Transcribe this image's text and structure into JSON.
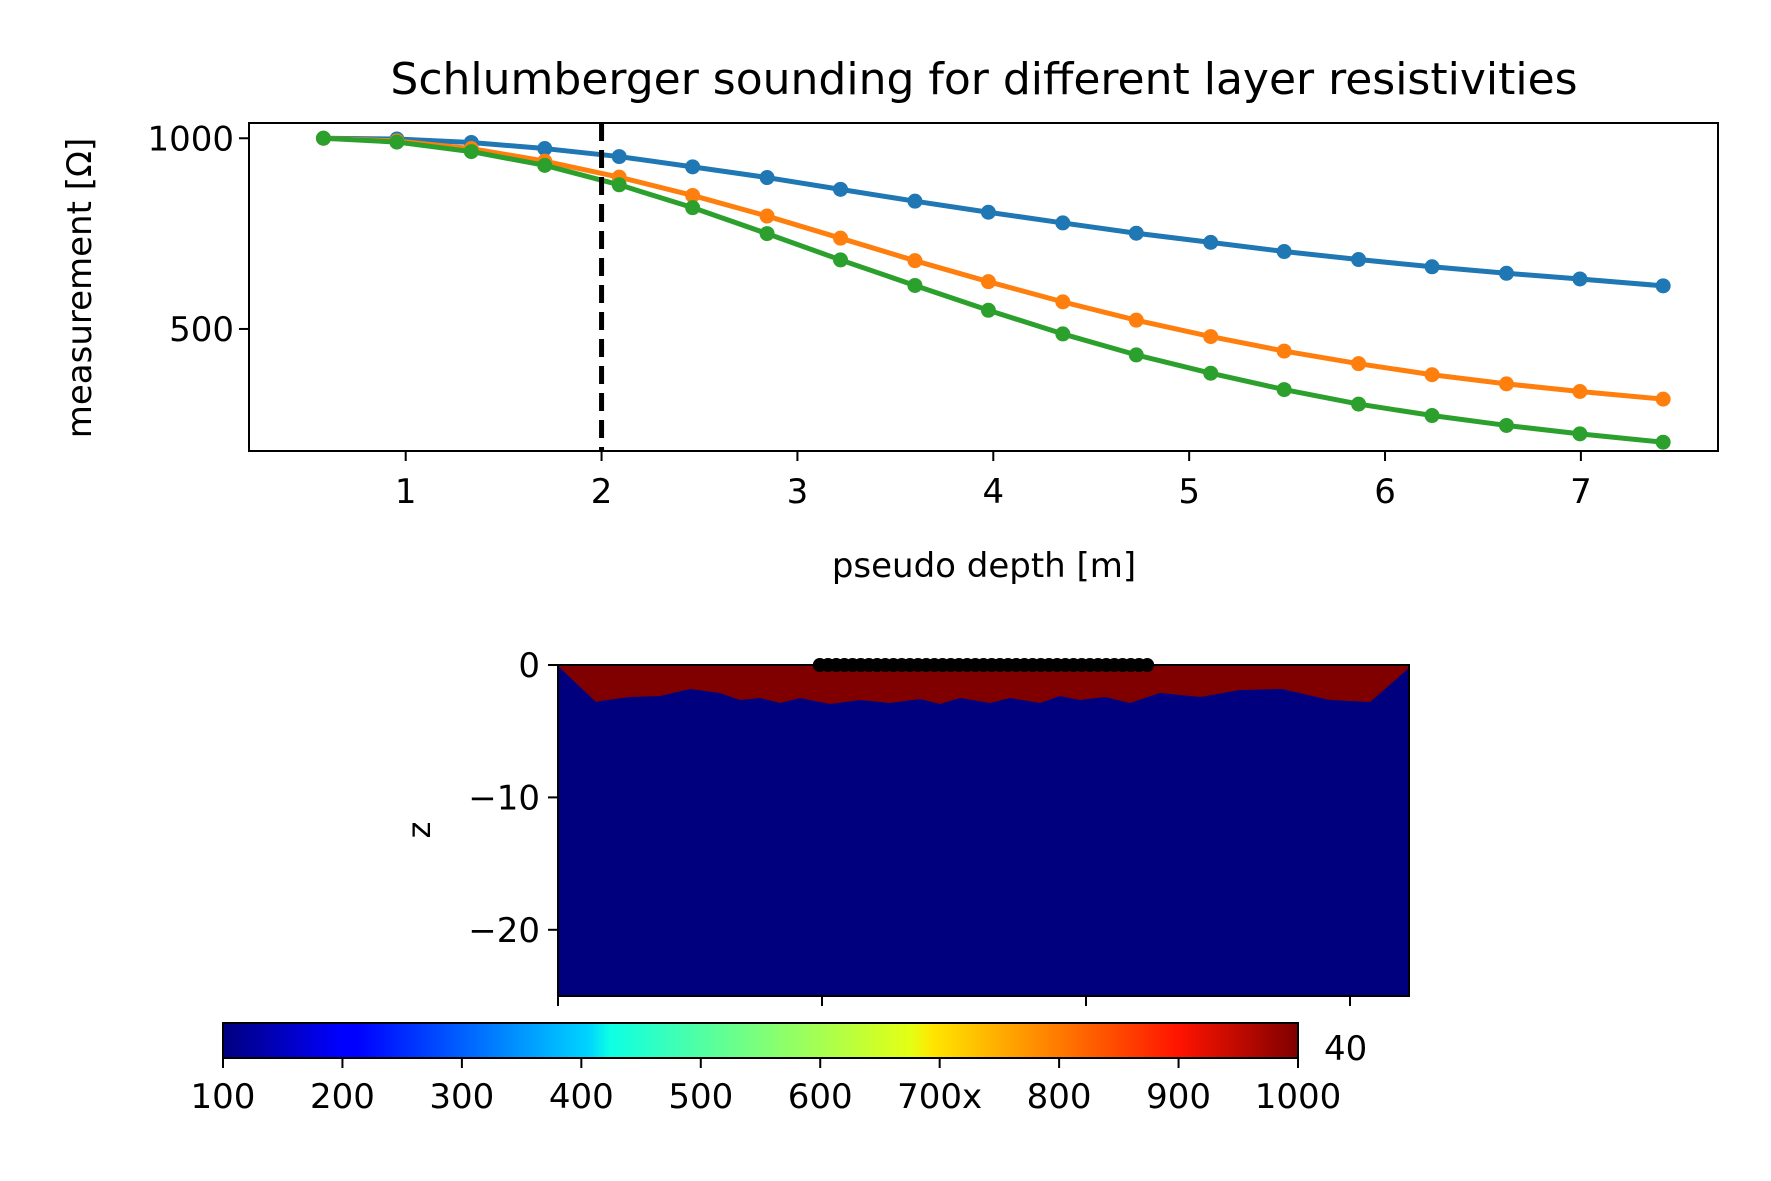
{
  "chart_data": [
    {
      "type": "line",
      "title": "Schlumberger sounding for different layer resistivities",
      "xlabel": "pseudo depth [m]",
      "ylabel": "measurement [Ω]",
      "xlim": [
        0.2,
        7.7
      ],
      "ylim": [
        180,
        1040
      ],
      "xticks": [
        "1",
        "2",
        "3",
        "4",
        "5",
        "6",
        "7"
      ],
      "yticks": [
        "500",
        "1000"
      ],
      "x": [
        0.58,
        0.955,
        1.335,
        1.71,
        2.09,
        2.465,
        2.845,
        3.22,
        3.6,
        3.975,
        4.355,
        4.73,
        5.11,
        5.485,
        5.865,
        6.24,
        6.62,
        6.995,
        7.42
      ],
      "series": [
        {
          "color": "#1f77b4",
          "values": [
            1000,
            998,
            989,
            973,
            952,
            925,
            897,
            866,
            835,
            806,
            778,
            751,
            727,
            703,
            682,
            663,
            646,
            631,
            613
          ]
        },
        {
          "color": "#ff7f0e",
          "values": [
            1000,
            993,
            973,
            940,
            898,
            850,
            796,
            738,
            679,
            624,
            571,
            523,
            480,
            442,
            409,
            380,
            356,
            336,
            316
          ]
        },
        {
          "color": "#2ca02c",
          "values": [
            1000,
            990,
            965,
            929,
            878,
            818,
            750,
            681,
            614,
            549,
            487,
            432,
            384,
            341,
            303,
            273,
            247,
            225,
            203
          ]
        }
      ],
      "vline": {
        "x": 2.0,
        "style": "dashed",
        "color": "#000000"
      },
      "grid": false,
      "legend": "none"
    },
    {
      "type": "heatmap",
      "ylabel": "z",
      "yticks": [
        "0",
        "−10",
        "−20"
      ],
      "ylim": [
        -25,
        0
      ],
      "xlim": [
        -65,
        65
      ],
      "layer_top_color": "#800000",
      "layer_bottom_color": "#00007f",
      "layer_thickness_approx": 2.5,
      "electrodes_x_range": [
        -25,
        25
      ],
      "electrode_color": "#000000",
      "colorbar": {
        "ticks": [
          "100",
          "200",
          "300",
          "400",
          "500",
          "600",
          "700x",
          "800",
          "900",
          "1000"
        ],
        "min": 100,
        "max": 1000,
        "colormap": "jet",
        "side_label": "40"
      }
    }
  ]
}
